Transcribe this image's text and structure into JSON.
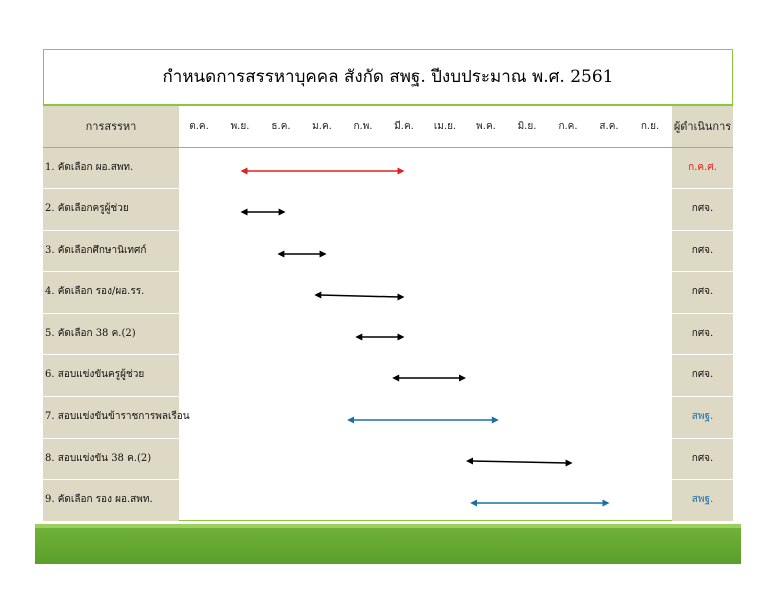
{
  "title": "กำหนดการสรรหาบุคคล สังกัด สพฐ. ปีงบประมาณ พ.ศ. 2561",
  "header": {
    "task_col": "การสรรหา",
    "resp_col": "ผู้ดำเนินการ",
    "months": [
      "ต.ค.",
      "พ.ย.",
      "ธ.ค.",
      "ม.ค.",
      "ก.พ.",
      "มี.ค.",
      "เม.ย.",
      "พ.ค.",
      "มิ.ย.",
      "ก.ค.",
      "ส.ค.",
      "ก.ย."
    ]
  },
  "colors": {
    "red": "#e0201c",
    "black": "#000000",
    "blue": "#1c6fa8",
    "green_border": "#8cc63f",
    "column_bg": "#ddd9c4",
    "footer_green": "#62a832"
  },
  "rows": [
    {
      "task": "1. คัดเลือก ผอ.สพท.",
      "responsible": "ก.ค.ศ.",
      "color": "red",
      "start": 1.0,
      "end": 5.0
    },
    {
      "task": "2. คัดเลือกครูผู้ช่วย",
      "responsible": "กศจ.",
      "color": "black",
      "start": 1.0,
      "end": 2.1
    },
    {
      "task": "3. คัดเลือกศึกษานิเทศก์",
      "responsible": "กศจ.",
      "color": "black",
      "start": 1.9,
      "end": 3.1
    },
    {
      "task": "4. คัดเลือก รอง/ผอ.รร.",
      "responsible": "กศจ.",
      "color": "black",
      "start": 2.8,
      "end": 5.0
    },
    {
      "task": "5. คัดเลือก 38 ค.(2)",
      "responsible": "กศจ.",
      "color": "black",
      "start": 3.8,
      "end": 5.0
    },
    {
      "task": "6. สอบแข่งขันครูผู้ช่วย",
      "responsible": "กศจ.",
      "color": "black",
      "start": 4.7,
      "end": 6.5
    },
    {
      "task": "7. สอบแข่งขันข้าราชการพลเรือน",
      "responsible": "สพฐ.",
      "color": "blue",
      "start": 3.6,
      "end": 7.3
    },
    {
      "task": "8. สอบแข่งขัน 38 ค.(2)",
      "responsible": "กศจ.",
      "color": "black",
      "start": 6.5,
      "end": 9.1
    },
    {
      "task": "9. คัดเลือก รอง ผอ.สพท.",
      "responsible": "สพฐ.",
      "color": "blue",
      "start": 6.6,
      "end": 10.0
    }
  ]
}
